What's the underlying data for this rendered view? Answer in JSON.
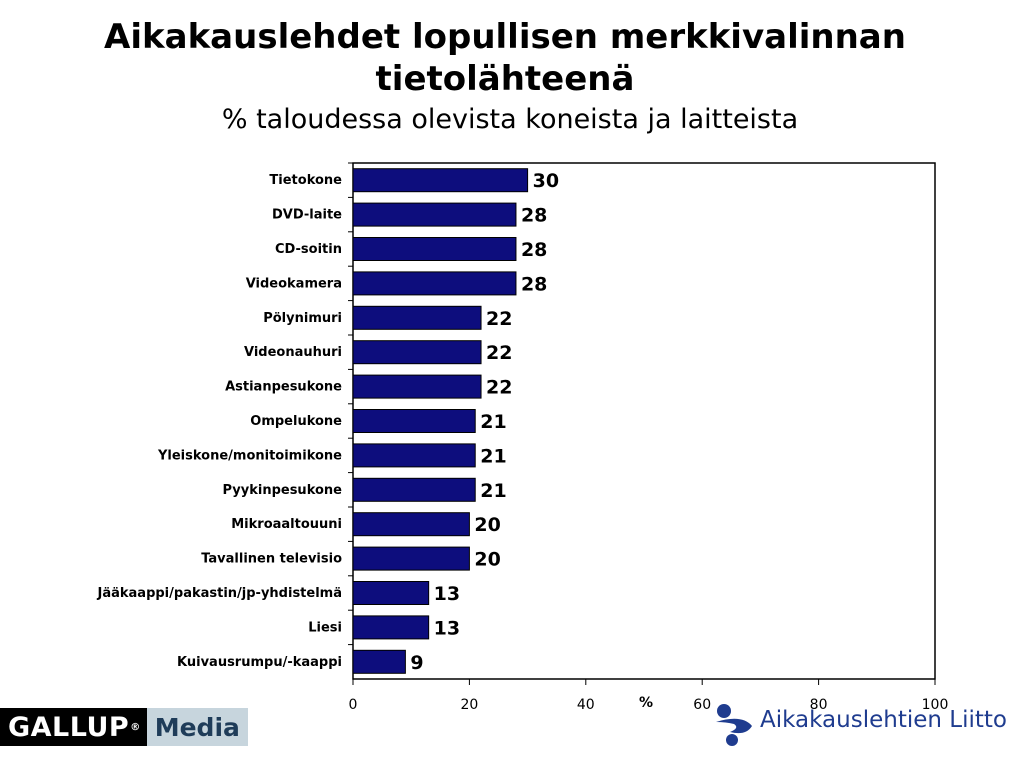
{
  "page": {
    "title": "Aikakauslehdet lopullisen merkkivalinnan tietolähteenä",
    "subtitle": "% taloudessa olevista koneista ja laitteista"
  },
  "chart_data": {
    "type": "bar",
    "orientation": "horizontal",
    "categories": [
      "Tietokone",
      "DVD-laite",
      "CD-soitin",
      "Videokamera",
      "Pölynimuri",
      "Videonauhuri",
      "Astianpesukone",
      "Ompelukone",
      "Yleiskone/monitoimikone",
      "Pyykinpesukone",
      "Mikroaaltouuni",
      "Tavallinen televisio",
      "Jääkaappi/pakastin/jp-yhdistelmä",
      "Liesi",
      "Kuivausrumpu/-kaappi"
    ],
    "values": [
      30,
      28,
      28,
      28,
      22,
      22,
      22,
      21,
      21,
      21,
      20,
      20,
      13,
      13,
      9
    ],
    "xlabel": "%",
    "xlim": [
      0,
      100
    ],
    "xticks": [
      0,
      20,
      40,
      60,
      80,
      100
    ],
    "bar_color": "#0d0d7d",
    "grid": false,
    "data_labels": true
  },
  "logos": {
    "gallup_word": "GALLUP",
    "gallup_reg": "®",
    "gallup_media": "Media",
    "al_text": "Aikakauslehtien Liitto",
    "al_color": "#1f3c8f"
  }
}
